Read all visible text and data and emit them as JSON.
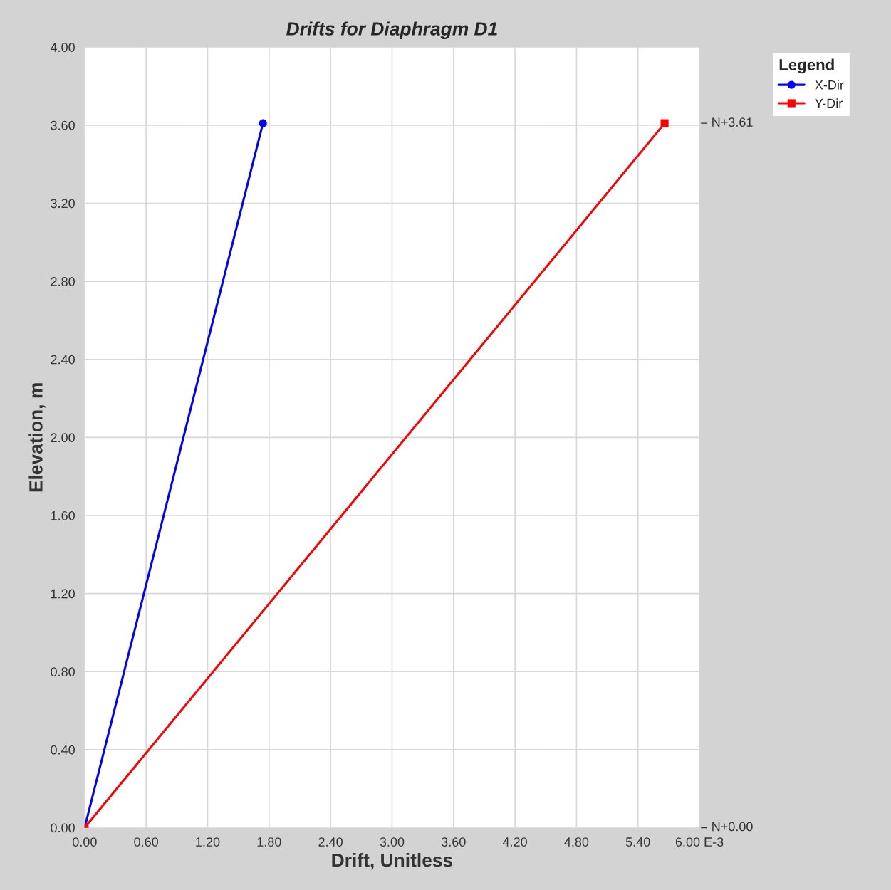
{
  "chart_data": {
    "type": "line",
    "title": "Drifts for Diaphragm D1",
    "xlabel": "Drift, Unitless",
    "ylabel": "Elevation, m",
    "legend_title": "Legend",
    "series": [
      {
        "name": "X-Dir",
        "color": "#0000ff",
        "marker": "circle",
        "x": [
          0.0,
          1.74
        ],
        "values": [
          0.0,
          3.61
        ]
      },
      {
        "name": "Y-Dir",
        "color": "#ff0000",
        "marker": "square",
        "x": [
          0.0,
          5.66
        ],
        "values": [
          0.0,
          3.61
        ]
      }
    ],
    "xlim": [
      0,
      6
    ],
    "xticks": [
      {
        "value": 0,
        "label": "0.00"
      },
      {
        "value": 0.6,
        "label": "0.60"
      },
      {
        "value": 1.2,
        "label": "1.20"
      },
      {
        "value": 1.8,
        "label": "1.80"
      },
      {
        "value": 2.4,
        "label": "2.40"
      },
      {
        "value": 3.0,
        "label": "3.00"
      },
      {
        "value": 3.6,
        "label": "3.60"
      },
      {
        "value": 4.2,
        "label": "4.20"
      },
      {
        "value": 4.8,
        "label": "4.80"
      },
      {
        "value": 5.4,
        "label": "5.40"
      },
      {
        "value": 6.0,
        "label": "6.00 E-3"
      }
    ],
    "ylim": [
      0,
      4
    ],
    "yticks": [
      {
        "value": 0,
        "label": "0.00"
      },
      {
        "value": 0.4,
        "label": "0.40"
      },
      {
        "value": 0.8,
        "label": "0.80"
      },
      {
        "value": 1.2,
        "label": "1.20"
      },
      {
        "value": 1.6,
        "label": "1.60"
      },
      {
        "value": 2.0,
        "label": "2.00"
      },
      {
        "value": 2.4,
        "label": "2.40"
      },
      {
        "value": 2.8,
        "label": "2.80"
      },
      {
        "value": 3.2,
        "label": "3.20"
      },
      {
        "value": 3.6,
        "label": "3.60"
      },
      {
        "value": 4.0,
        "label": "4.00"
      }
    ],
    "annotations": [
      "N+3.61",
      "N+0.00"
    ],
    "grid": true,
    "legend": "right",
    "line_style": "solid"
  }
}
